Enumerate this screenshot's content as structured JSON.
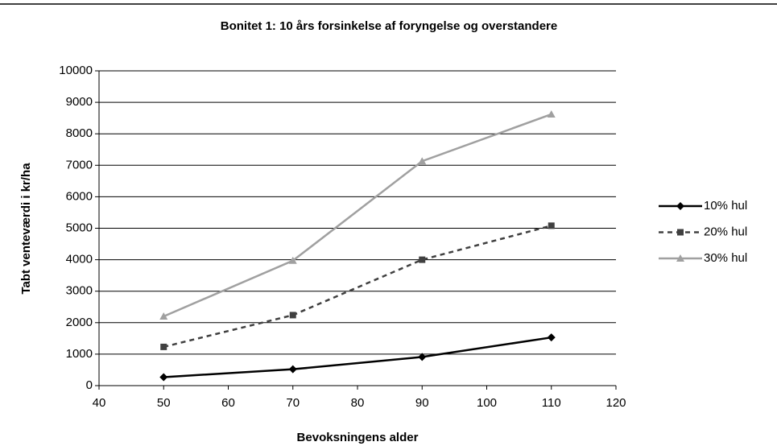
{
  "chart_data": {
    "type": "line",
    "title": "Bonitet 1: 10 års forsinkelse af foryngelse og overstandere",
    "xlabel": "Bevoksningens alder",
    "ylabel": "Tabt venteværdi i kr/ha",
    "x": [
      50,
      70,
      90,
      110
    ],
    "series": [
      {
        "name": "10% hul",
        "color": "#000000",
        "dash": "solid",
        "marker": "diamond",
        "values": [
          270,
          520,
          910,
          1530
        ]
      },
      {
        "name": "20% hul",
        "color": "#404040",
        "dash": "dashed",
        "marker": "square",
        "values": [
          1230,
          2240,
          4000,
          5080
        ]
      },
      {
        "name": "30% hul",
        "color": "#a0a0a0",
        "dash": "solid",
        "marker": "triangle",
        "values": [
          2200,
          3970,
          7130,
          8620
        ]
      }
    ],
    "xlim": [
      40,
      120
    ],
    "xticks": [
      40,
      50,
      60,
      70,
      80,
      90,
      100,
      110,
      120
    ],
    "ylim": [
      0,
      10000
    ],
    "yticks": [
      0,
      1000,
      2000,
      3000,
      4000,
      5000,
      6000,
      7000,
      8000,
      9000,
      10000
    ],
    "grid": true,
    "legend": "right"
  }
}
